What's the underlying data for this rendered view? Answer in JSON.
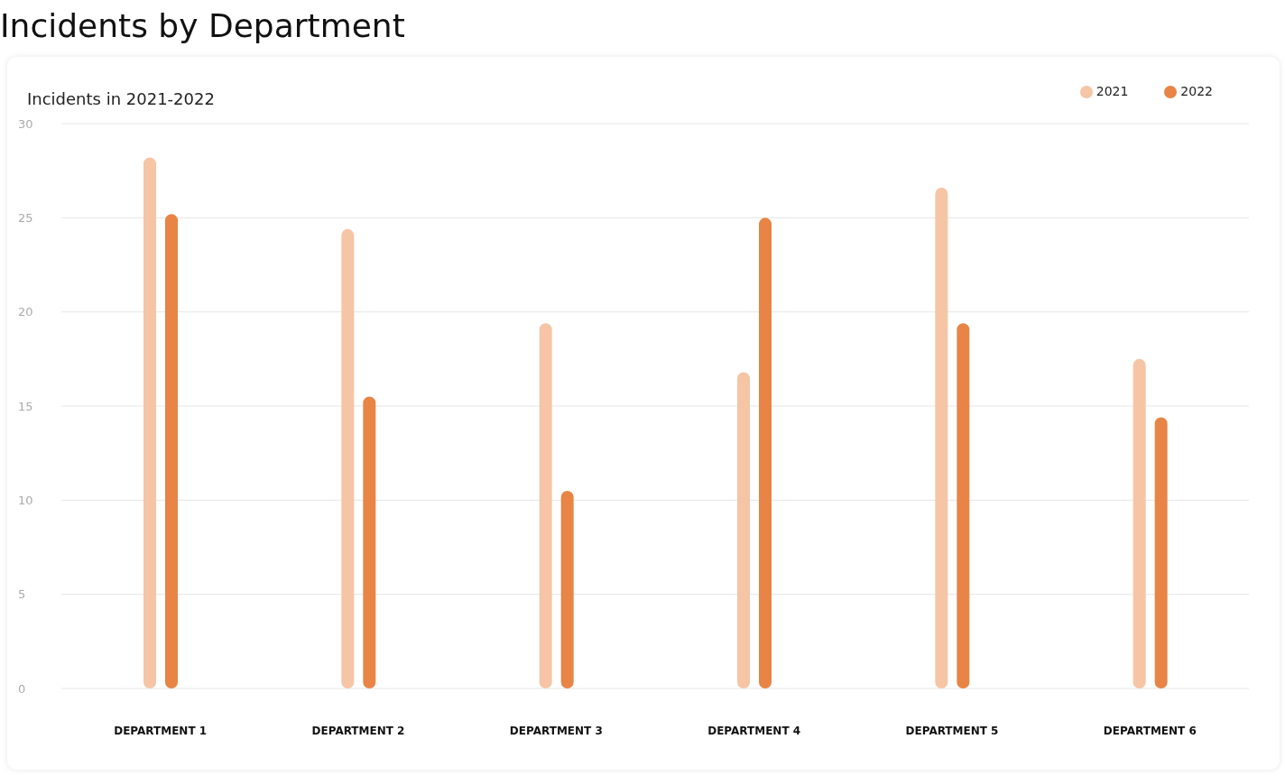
{
  "chart_data": {
    "type": "bar",
    "title": "Incidents by Department",
    "subtitle": "Incidents in 2021-2022",
    "categories": [
      "DEPARTMENT 1",
      "DEPARTMENT 2",
      "DEPARTMENT 3",
      "DEPARTMENT 4",
      "DEPARTMENT 5",
      "DEPARTMENT 6"
    ],
    "series": [
      {
        "name": "2021",
        "color": "#f5c5a5",
        "values": [
          28.2,
          24.4,
          19.4,
          16.8,
          26.6,
          17.5
        ]
      },
      {
        "name": "2022",
        "color": "#e88445",
        "values": [
          25.2,
          15.5,
          10.5,
          25,
          19.4,
          14.4
        ]
      }
    ],
    "ylim": [
      0,
      30
    ],
    "yticks": [
      0,
      5,
      10,
      15,
      20,
      25,
      30
    ],
    "grid": "y",
    "legend": "top right"
  }
}
